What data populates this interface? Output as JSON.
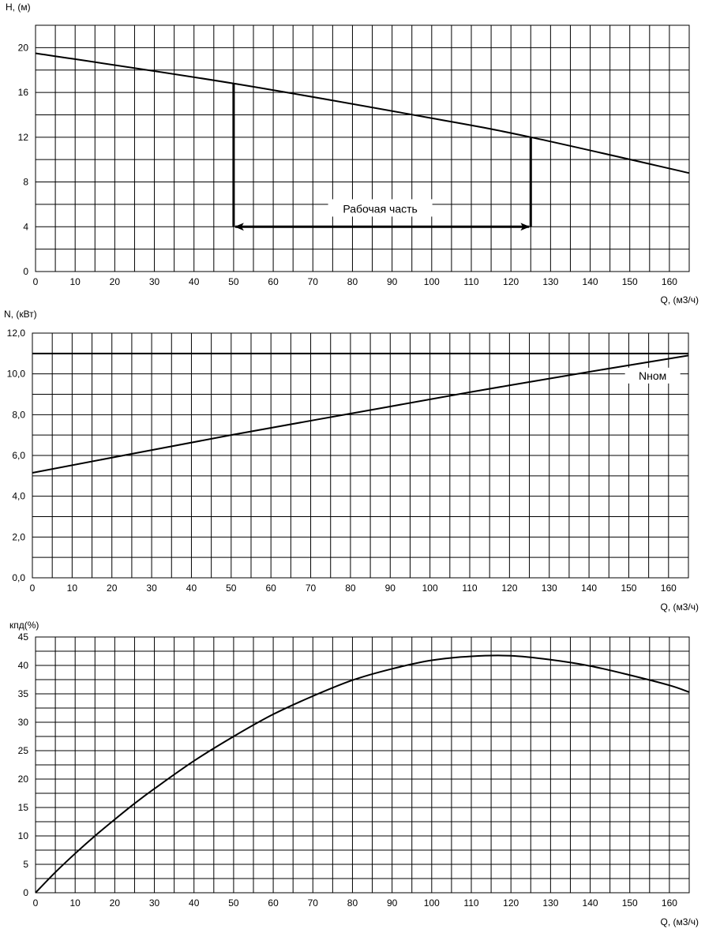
{
  "chart_data": [
    {
      "type": "line",
      "xlabel": "Q, (м3/ч)",
      "ylabel": "H, (м)",
      "xlim": [
        0,
        165
      ],
      "ylim": [
        0,
        22
      ],
      "grid": true,
      "x_ticks": [
        0,
        10,
        20,
        30,
        40,
        50,
        60,
        70,
        80,
        90,
        100,
        110,
        120,
        130,
        140,
        150,
        160
      ],
      "x_tick_labels": [
        "0",
        "10",
        "20",
        "30",
        "40",
        "50",
        "60",
        "70",
        "80",
        "90",
        "100",
        "110",
        "120",
        "130",
        "140",
        "150",
        "160"
      ],
      "y_ticks": [
        0,
        4,
        8,
        12,
        16,
        20
      ],
      "y_tick_labels": [
        "0",
        "4",
        "8",
        "12",
        "16",
        "20"
      ],
      "series": [
        {
          "x": [
            0,
            50,
            100,
            125,
            165
          ],
          "y": [
            19.5,
            16.8,
            13.7,
            12.0,
            8.8
          ]
        }
      ],
      "annotation": {
        "text": "Рабочая часть",
        "x_range": [
          50,
          125
        ],
        "y": 4,
        "range_label_anchor": [
          87,
          5.4
        ]
      }
    },
    {
      "type": "line",
      "xlabel": "Q, (м3/ч)",
      "ylabel": "N, (кВт)",
      "xlim": [
        0,
        165
      ],
      "ylim": [
        0,
        12
      ],
      "grid": true,
      "x_ticks": [
        0,
        10,
        20,
        30,
        40,
        50,
        60,
        70,
        80,
        90,
        100,
        110,
        120,
        130,
        140,
        150,
        160
      ],
      "x_tick_labels": [
        "0",
        "10",
        "20",
        "30",
        "40",
        "50",
        "60",
        "70",
        "80",
        "90",
        "100",
        "110",
        "120",
        "130",
        "140",
        "150",
        "160"
      ],
      "y_ticks": [
        0,
        2,
        4,
        6,
        8,
        10,
        12
      ],
      "y_tick_labels": [
        "0,0",
        "2,0",
        "4,0",
        "6,0",
        "8,0",
        "10,0",
        "12,0"
      ],
      "series": [
        {
          "x": [
            0,
            50,
            80,
            110,
            140,
            165
          ],
          "y": [
            5.15,
            7.0,
            8.05,
            9.1,
            10.1,
            10.9
          ]
        }
      ],
      "reference_line": {
        "label": "Nном",
        "y": 11.0,
        "label_anchor": [
          156,
          9.8
        ]
      }
    },
    {
      "type": "line",
      "xlabel": "Q, (м3/ч)",
      "ylabel": "кпд(%)",
      "xlim": [
        0,
        165
      ],
      "ylim": [
        0,
        45
      ],
      "grid": true,
      "x_ticks": [
        0,
        10,
        20,
        30,
        40,
        50,
        60,
        70,
        80,
        90,
        100,
        110,
        120,
        130,
        140,
        150,
        160
      ],
      "x_tick_labels": [
        "0",
        "10",
        "20",
        "30",
        "40",
        "50",
        "60",
        "70",
        "80",
        "90",
        "100",
        "110",
        "120",
        "130",
        "140",
        "150",
        "160"
      ],
      "y_ticks": [
        0,
        5,
        10,
        15,
        20,
        25,
        30,
        35,
        40,
        45
      ],
      "y_tick_labels": [
        "0",
        "5",
        "10",
        "15",
        "20",
        "25",
        "30",
        "35",
        "40",
        "45"
      ],
      "series": [
        {
          "x": [
            0,
            5,
            10,
            15,
            20,
            25,
            30,
            40,
            50,
            60,
            70,
            80,
            90,
            100,
            110,
            120,
            130,
            140,
            150,
            160,
            165
          ],
          "y": [
            0,
            3.6,
            6.9,
            10.0,
            12.9,
            15.7,
            18.3,
            23.2,
            27.5,
            31.4,
            34.6,
            37.4,
            39.4,
            40.9,
            41.6,
            41.7,
            41.0,
            39.9,
            38.3,
            36.5,
            35.3
          ]
        }
      ]
    }
  ]
}
